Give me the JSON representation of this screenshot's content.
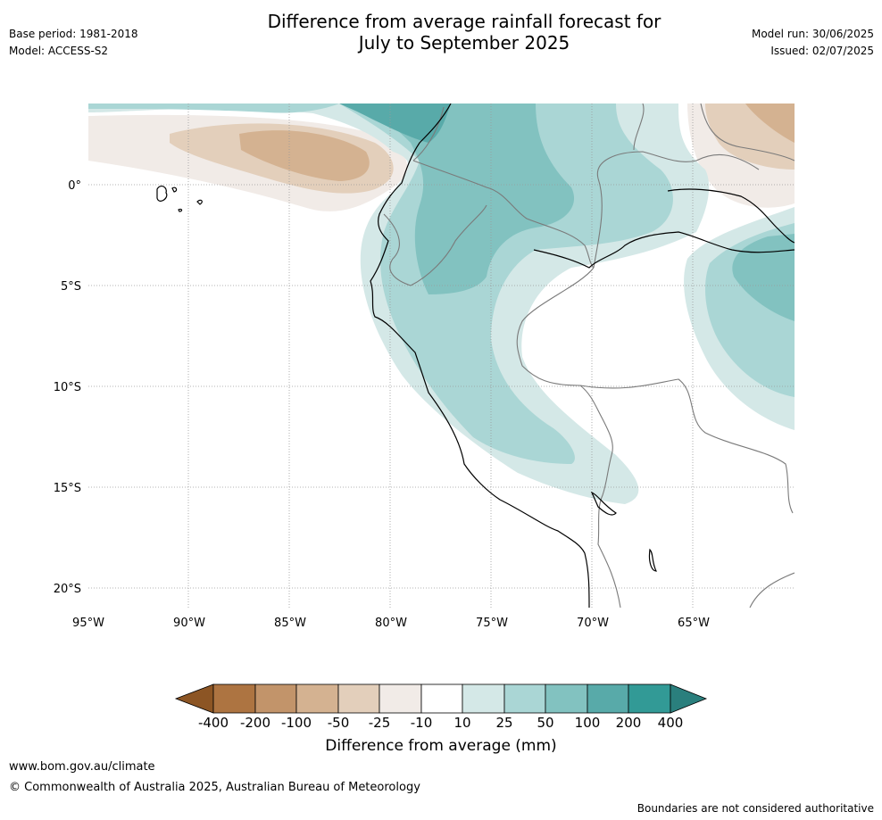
{
  "header": {
    "base_period": "Base period: 1981-2018",
    "model": "Model: ACCESS-S2",
    "title_line1": "Difference from average rainfall forecast for",
    "title_line2": "July to September 2025",
    "model_run": "Model run: 30/06/2025",
    "issued": "Issued: 02/07/2025"
  },
  "map": {
    "lat_labels": [
      "0°",
      "5°S",
      "10°S",
      "15°S",
      "20°S"
    ],
    "lon_labels": [
      "95°W",
      "90°W",
      "85°W",
      "80°W",
      "75°W",
      "70°W",
      "65°W"
    ]
  },
  "colorbar": {
    "title": "Difference from average (mm)",
    "ticks": [
      "-400",
      "-200",
      "-100",
      "-50",
      "-25",
      "-10",
      "10",
      "25",
      "50",
      "100",
      "200",
      "400"
    ],
    "colors": {
      "under": "#8c5524",
      "c1": "#ad7441",
      "c2": "#c2946a",
      "c3": "#d4b291",
      "c4": "#e3cfbb",
      "c5": "#f1ebe7",
      "c6": "#ffffff",
      "c7": "#d4e8e7",
      "c8": "#aad6d5",
      "c9": "#82c2c0",
      "c10": "#58aaa9",
      "c11": "#329a96",
      "over": "#2a7f7d"
    }
  },
  "footer": {
    "url": "www.bom.gov.au/climate",
    "copyright": "© Commonwealth of Australia 2025, Australian Bureau of Meteorology",
    "disclaimer": "Boundaries are not considered authoritative"
  }
}
